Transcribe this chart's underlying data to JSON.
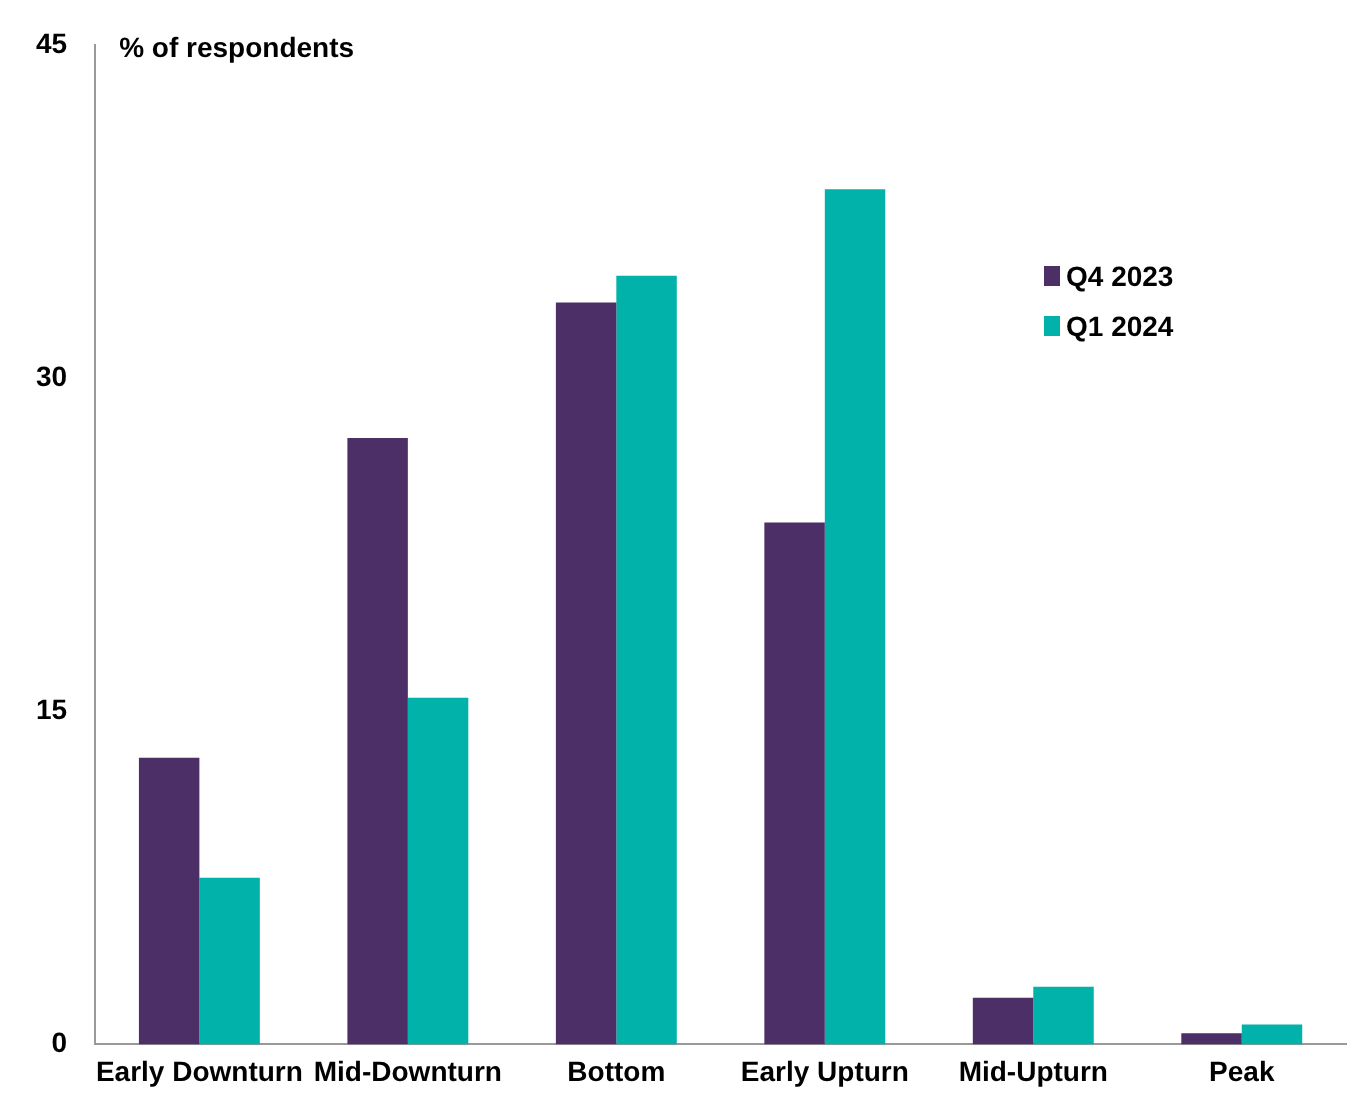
{
  "chart_data": {
    "type": "bar",
    "ylabel": "% of respondents",
    "categories": [
      "Early Downturn",
      "Mid-Downturn",
      "Bottom",
      "Early Upturn",
      "Mid-Upturn",
      "Peak"
    ],
    "series": [
      {
        "name": "Q4 2023",
        "color": "#4b2f66",
        "values": [
          12.9,
          27.3,
          33.4,
          23.5,
          2.1,
          0.5
        ]
      },
      {
        "name": "Q1 2024",
        "color": "#00b2a9",
        "values": [
          7.5,
          15.6,
          34.6,
          38.5,
          2.6,
          0.9
        ]
      }
    ],
    "ylim": [
      0,
      45
    ],
    "yticks": [
      0,
      15,
      30,
      45
    ],
    "grid": false,
    "legend": "right"
  }
}
